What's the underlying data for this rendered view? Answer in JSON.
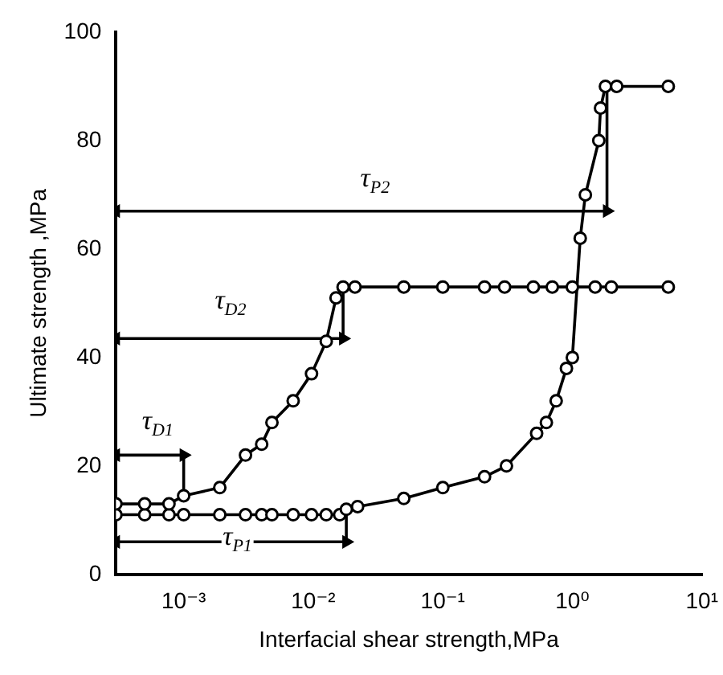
{
  "chart_data": {
    "type": "line",
    "xlabel": "Interfacial shear strength,MPa",
    "ylabel": "Ultimate strength ,MPa",
    "log": "x",
    "xlim": [
      0.0003,
      10
    ],
    "xticks": [
      {
        "value": 0.001,
        "label": "10⁻³"
      },
      {
        "value": 0.01,
        "label": "10⁻²"
      },
      {
        "value": 0.1,
        "label": "10⁻¹"
      },
      {
        "value": 1,
        "label": "10⁰"
      },
      {
        "value": 10,
        "label": "10¹"
      }
    ],
    "ylim": [
      0,
      100
    ],
    "yticks": [
      0,
      20,
      40,
      60,
      80,
      100
    ],
    "grid": false,
    "legend": false,
    "marker": "circle",
    "line_style": "solid",
    "series": [
      {
        "color": "#000000",
        "x": [
          0.0003,
          0.0005,
          0.00077,
          0.001,
          0.0019,
          0.003,
          0.004,
          0.0048,
          0.007,
          0.0097,
          0.0126,
          0.015,
          0.017,
          0.021,
          0.05,
          0.1,
          0.21,
          0.3,
          0.5,
          0.7,
          1,
          1.5,
          2,
          5.5
        ],
        "values": [
          13,
          13,
          13,
          14.5,
          16,
          22,
          24,
          28,
          32,
          37,
          43,
          51,
          53,
          53,
          53,
          53,
          53,
          53,
          53,
          53,
          53,
          53,
          53,
          53
        ]
      },
      {
        "color": "#000000",
        "x": [
          0.0003,
          0.0005,
          0.00077,
          0.001,
          0.0019,
          0.003,
          0.004,
          0.0048,
          0.007,
          0.0097,
          0.0126,
          0.016,
          0.018,
          0.022,
          0.05,
          0.1,
          0.21,
          0.31,
          0.53,
          0.63,
          0.75,
          0.9,
          1,
          1.15,
          1.26,
          1.6,
          1.65,
          1.8,
          2.2,
          5.5
        ],
        "values": [
          11,
          11,
          11,
          11,
          11,
          11,
          11,
          11,
          11,
          11,
          11,
          11,
          12,
          12.5,
          14,
          16,
          18,
          20,
          26,
          28,
          32,
          38,
          40,
          62,
          70,
          80,
          86,
          90,
          90,
          90
        ]
      },
      {
        "color": "#000000",
        "marker": "triangle",
        "x": [
          0.0003,
          1.85,
          1.85
        ],
        "values": [
          67,
          67,
          90
        ]
      },
      {
        "color": "#000000",
        "marker": "triangle",
        "x": [
          0.0003,
          0.017,
          0.017
        ],
        "values": [
          43.5,
          43.5,
          53
        ]
      },
      {
        "color": "#000000",
        "marker": "triangle",
        "x": [
          0.0003,
          0.001,
          0.001
        ],
        "values": [
          22,
          22,
          14.5
        ]
      },
      {
        "color": "#000000",
        "marker": "triangle",
        "x": [
          0.0003,
          0.018,
          0.018
        ],
        "values": [
          6,
          6,
          12
        ]
      }
    ],
    "annotations": [
      {
        "text": "τ$_{P2}$",
        "x": 0.03,
        "y": 67
      },
      {
        "text": "τ$_{D2}$",
        "x": 0.0023,
        "y": 43.5
      },
      {
        "text": "τ$_{D1}$",
        "x": 0.00063,
        "y": 22
      },
      {
        "text": "τ$_{P1}$",
        "x": 0.0026,
        "y": 6
      }
    ]
  }
}
